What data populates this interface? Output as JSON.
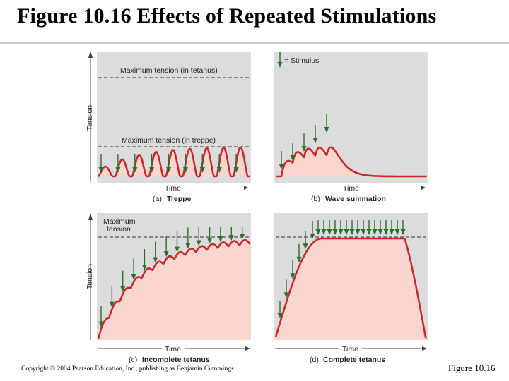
{
  "slide": {
    "title": "Figure 10.16  Effects of Repeated Stimulations",
    "copyright": "Copyright © 2004 Pearson Education, Inc., publishing as Benjamin Cummings",
    "figure_number": "Figure 10.16"
  },
  "colors": {
    "curve": "#cc2a2a",
    "fill": "#f9d6d0",
    "arrow": "#2f6e2f",
    "panel": "#dcdcdc"
  },
  "axis": {
    "x_label": "Time",
    "y_label": "Tension"
  },
  "legend": {
    "stimulus_label": "= Stimulus"
  },
  "panels": {
    "a": {
      "letter": "(a)",
      "title": "Treppe",
      "max_tetanus_label": "Maximum tension (in tetanus)",
      "max_treppe_label": "Maximum tension (in treppe)"
    },
    "b": {
      "letter": "(b)",
      "title": "Wave summation"
    },
    "c": {
      "letter": "(c)",
      "title": "Incomplete tetanus",
      "max_label_line1": "Maximum",
      "max_label_line2": "tension"
    },
    "d": {
      "letter": "(d)",
      "title": "Complete tetanus"
    }
  }
}
